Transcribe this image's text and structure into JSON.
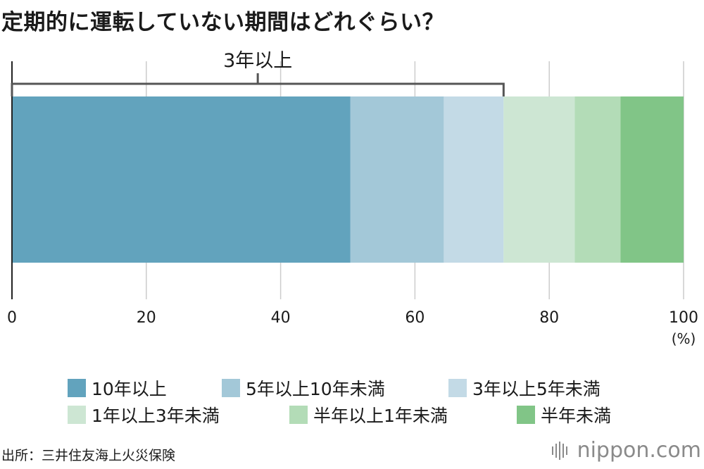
{
  "title": "定期的に運転していない期間はどれぐらい？",
  "chart_data": {
    "type": "bar",
    "orientation": "horizontal",
    "stacked": true,
    "xlim": [
      0,
      100
    ],
    "ticks": [
      "0",
      "20",
      "40",
      "60",
      "80",
      "100"
    ],
    "tick_values": [
      0,
      20,
      40,
      60,
      80,
      100
    ],
    "unit_label": "(%)",
    "grid": true,
    "series": [
      {
        "name": "10年以上",
        "value": 50.4,
        "color": "#62a3bd"
      },
      {
        "name": "5年以上10年未満",
        "value": 13.9,
        "color": "#a3c8d8"
      },
      {
        "name": "3年以上5年未満",
        "value": 8.9,
        "color": "#c3dae6"
      },
      {
        "name": "1年以上3年未満",
        "value": 10.6,
        "color": "#cde6d3"
      },
      {
        "name": "半年以上1年未満",
        "value": 6.8,
        "color": "#b3dcb7"
      },
      {
        "name": "半年未満",
        "value": 9.4,
        "color": "#81c587"
      }
    ],
    "annotation": {
      "label": "3年以上",
      "from": 0,
      "to": 73.2
    },
    "legend_position": "bottom"
  },
  "legend": [
    {
      "label": "10年以上",
      "color": "#62a3bd"
    },
    {
      "label": "5年以上10年未満",
      "color": "#a3c8d8"
    },
    {
      "label": "3年以上5年未満",
      "color": "#c3dae6"
    },
    {
      "label": "1年以上3年未満",
      "color": "#cde6d3"
    },
    {
      "label": "半年以上1年未満",
      "color": "#b3dcb7"
    },
    {
      "label": "半年未満",
      "color": "#81c587"
    }
  ],
  "source": "出所：三井住友海上火災保険",
  "logo": {
    "text": "nippon.com",
    "icon": "nippon-bars-icon"
  }
}
